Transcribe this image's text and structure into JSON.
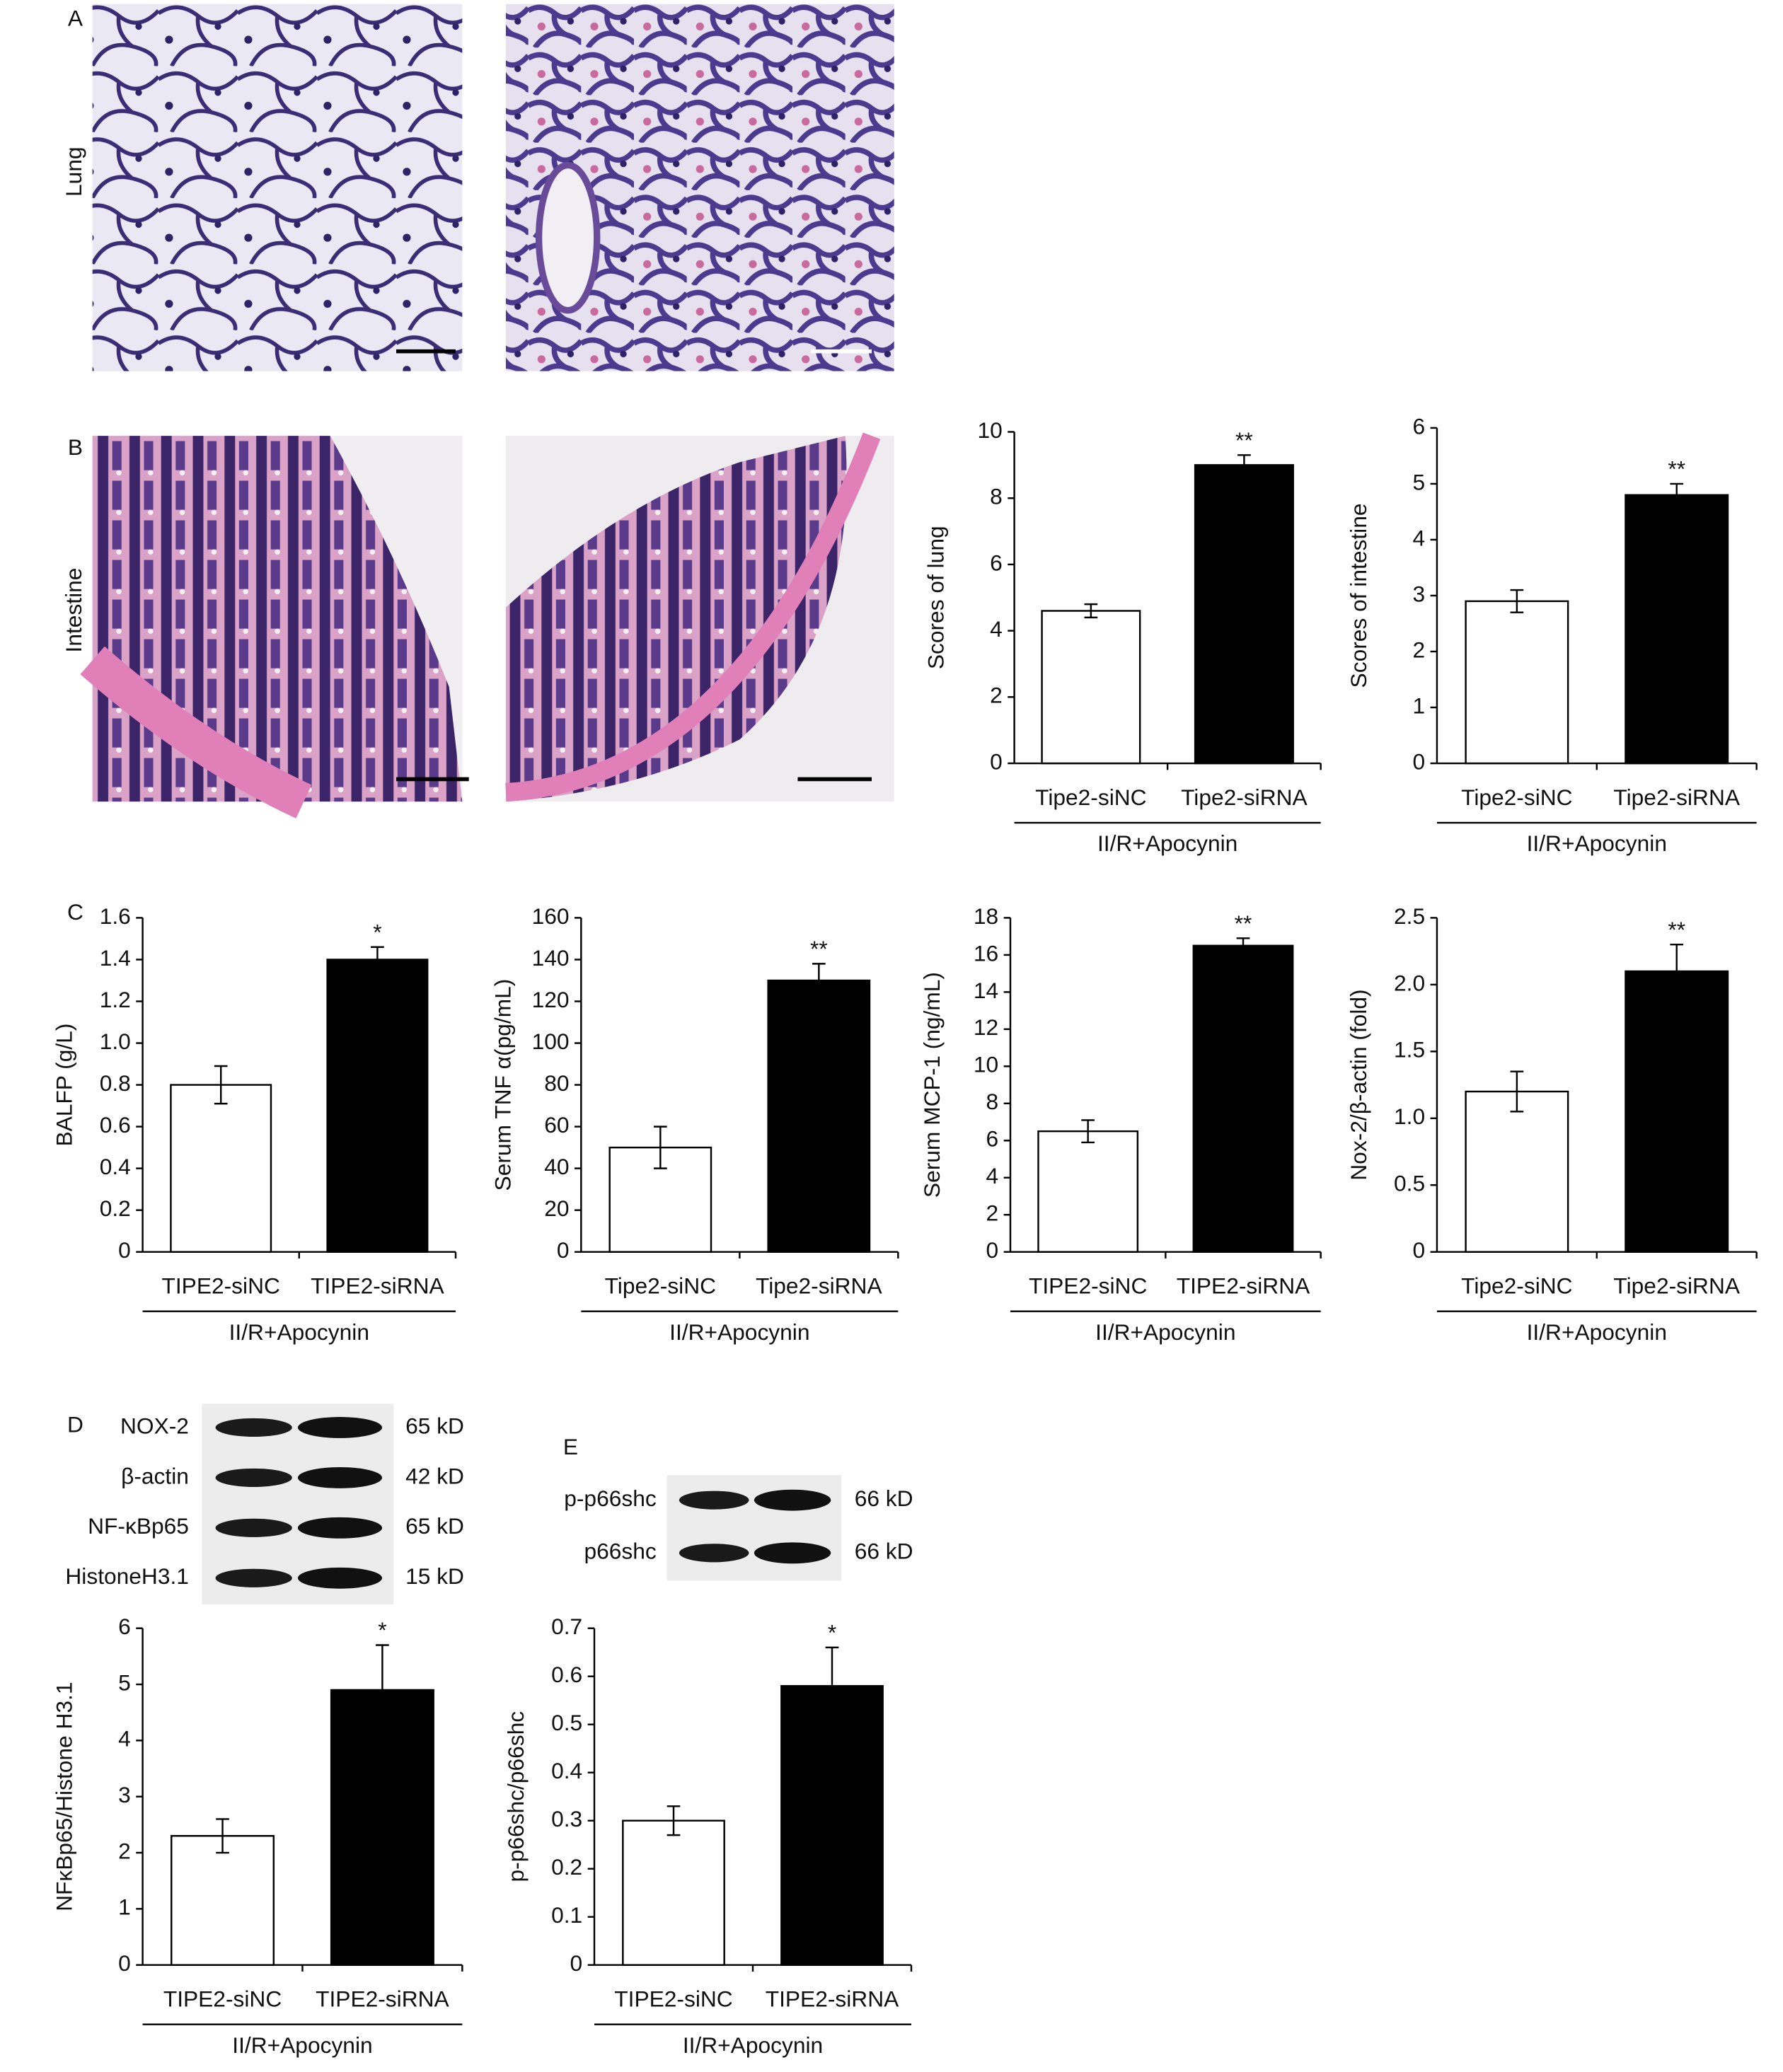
{
  "panel_labels": [
    "A",
    "B",
    "C",
    "D",
    "E"
  ],
  "row_labels": [
    "Lung",
    "Intestine"
  ],
  "blots": {
    "D": [
      {
        "protein": "NOX-2",
        "size": "65 kD"
      },
      {
        "protein": "β-actin",
        "size": "42 kD"
      },
      {
        "protein": "NF-κBp65",
        "size": "65 kD"
      },
      {
        "protein": "HistoneH3.1",
        "size": "15 kD"
      }
    ],
    "E": [
      {
        "protein": "p-p66shc",
        "size": "66 kD"
      },
      {
        "protein": "p66shc",
        "size": "66 kD"
      }
    ]
  },
  "chart_data": [
    {
      "type": "bar",
      "ylabel": "Scores of lung",
      "categories": [
        "Tipe2-siNC",
        "Tipe2-siRNA"
      ],
      "values": [
        4.6,
        9.0
      ],
      "errors": [
        0.2,
        0.3
      ],
      "colors": [
        "#ffffff",
        "#000000"
      ],
      "significance": [
        null,
        "**"
      ],
      "group_label": "II/R+Apocynin",
      "ylim": [
        0,
        10
      ],
      "yticks": [
        0,
        2,
        4,
        6,
        8,
        10
      ]
    },
    {
      "type": "bar",
      "ylabel": "Scores of intestine",
      "categories": [
        "Tipe2-siNC",
        "Tipe2-siRNA"
      ],
      "values": [
        2.9,
        4.8
      ],
      "errors": [
        0.2,
        0.2
      ],
      "colors": [
        "#ffffff",
        "#000000"
      ],
      "significance": [
        null,
        "**"
      ],
      "group_label": "II/R+Apocynin",
      "ylim": [
        0,
        6
      ],
      "yticks": [
        0,
        1,
        2,
        3,
        4,
        5,
        6
      ]
    },
    {
      "type": "bar",
      "ylabel": "BALFP  (g/L)",
      "categories": [
        "TIPE2-siNC",
        "TIPE2-siRNA"
      ],
      "values": [
        0.8,
        1.4
      ],
      "errors": [
        0.09,
        0.06
      ],
      "colors": [
        "#ffffff",
        "#000000"
      ],
      "significance": [
        null,
        "*"
      ],
      "group_label": "II/R+Apocynin",
      "ylim": [
        0,
        1.6
      ],
      "yticks": [
        0,
        0.2,
        0.4,
        0.6,
        0.8,
        {
          "value": 1,
          "label": "1.0"
        },
        1.2,
        1.4,
        1.6
      ]
    },
    {
      "type": "bar",
      "ylabel": "Serum TNF α(pg/mL)",
      "categories": [
        "Tipe2-siNC",
        "Tipe2-siRNA"
      ],
      "values": [
        50,
        130
      ],
      "errors": [
        10,
        8
      ],
      "colors": [
        "#ffffff",
        "#000000"
      ],
      "significance": [
        null,
        "**"
      ],
      "group_label": "II/R+Apocynin",
      "ylim": [
        0,
        160
      ],
      "yticks": [
        0,
        20,
        40,
        60,
        80,
        100,
        120,
        140,
        160
      ]
    },
    {
      "type": "bar",
      "ylabel": "Serum MCP-1 (ng/mL)",
      "categories": [
        "TIPE2-siNC",
        "TIPE2-siRNA"
      ],
      "values": [
        6.5,
        16.5
      ],
      "errors": [
        0.6,
        0.4
      ],
      "colors": [
        "#ffffff",
        "#000000"
      ],
      "significance": [
        null,
        "**"
      ],
      "group_label": "II/R+Apocynin",
      "ylim": [
        0,
        18
      ],
      "yticks": [
        0,
        2,
        4,
        6,
        8,
        10,
        12,
        14,
        16,
        18
      ]
    },
    {
      "type": "bar",
      "ylabel": "Nox-2/β-actin (fold)",
      "categories": [
        "Tipe2-siNC",
        "Tipe2-siRNA"
      ],
      "values": [
        1.2,
        2.1
      ],
      "errors": [
        0.15,
        0.2
      ],
      "colors": [
        "#ffffff",
        "#000000"
      ],
      "significance": [
        null,
        "**"
      ],
      "group_label": "II/R+Apocynin",
      "ylim": [
        0,
        2.5
      ],
      "yticks": [
        0,
        {
          "value": 0.5,
          "label": "0.5"
        },
        {
          "value": 1,
          "label": "1.0"
        },
        1.5,
        {
          "value": 2,
          "label": "2.0"
        },
        2.5
      ]
    },
    {
      "type": "bar",
      "ylabel": "NFκBp65/Histone H3.1",
      "categories": [
        "TIPE2-siNC",
        "TIPE2-siRNA"
      ],
      "values": [
        2.3,
        4.9
      ],
      "errors": [
        0.3,
        0.8
      ],
      "colors": [
        "#ffffff",
        "#000000"
      ],
      "significance": [
        null,
        "*"
      ],
      "group_label": "II/R+Apocynin",
      "ylim": [
        0,
        6
      ],
      "yticks": [
        0,
        1,
        2,
        3,
        4,
        5,
        6
      ]
    },
    {
      "type": "bar",
      "ylabel": "p-p66shc/p66shc",
      "categories": [
        "TIPE2-siNC",
        "TIPE2-siRNA"
      ],
      "values": [
        0.3,
        0.58
      ],
      "errors": [
        0.03,
        0.08
      ],
      "colors": [
        "#ffffff",
        "#000000"
      ],
      "significance": [
        null,
        "*"
      ],
      "group_label": "II/R+Apocynin",
      "ylim": [
        0,
        0.7
      ],
      "yticks": [
        0,
        0.1,
        0.2,
        0.3,
        0.4,
        0.5,
        0.6,
        0.7
      ]
    }
  ]
}
